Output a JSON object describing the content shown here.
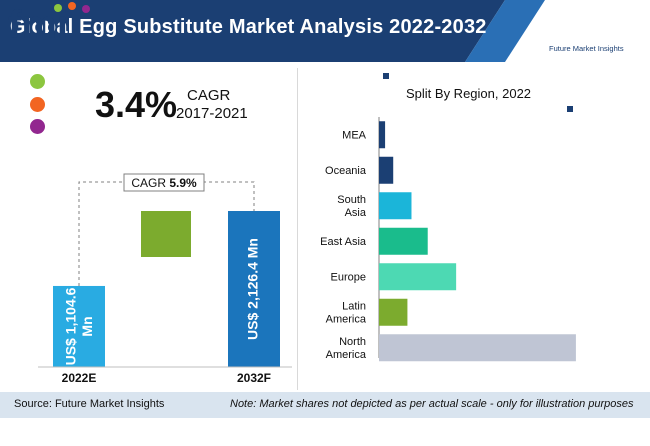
{
  "header": {
    "title": "Global Egg Substitute Market Analysis 2022-2032",
    "logo_letters": "fmi",
    "logo_subtitle": "Future Market Insights"
  },
  "colors": {
    "header_dark": "#1b3f73",
    "header_light": "#2a6fb5",
    "dot_green": "#8cc63f",
    "dot_orange": "#f26522",
    "dot_purple": "#92278f",
    "bar_2022": "#29abe2",
    "bar_2032": "#1b75bc",
    "bar_growth": "#7cab2e",
    "footer_bg": "#d9e4ef"
  },
  "cagr_historic": {
    "value": "3.4%",
    "label": "CAGR",
    "period": "2017-2021"
  },
  "chart_data": [
    {
      "type": "bar",
      "categories": [
        "2022E",
        "2032F"
      ],
      "series": [
        {
          "values": [
            1104.6,
            2126.4
          ]
        }
      ],
      "bar_labels": [
        "US$ 1,104.6 Mn",
        "US$ 2,126.4 Mn"
      ],
      "annotation": {
        "label": "CAGR",
        "value": "5.9%"
      }
    },
    {
      "type": "bar",
      "orientation": "horizontal",
      "title": "Split By Region, 2022",
      "categories": [
        "MEA",
        "Oceania",
        "South Asia",
        "East Asia",
        "Europe",
        "Latin America",
        "North America"
      ],
      "category_lines": [
        [
          "MEA"
        ],
        [
          "Oceania"
        ],
        [
          "South",
          "Asia"
        ],
        [
          "East Asia"
        ],
        [
          "Europe"
        ],
        [
          "Latin",
          "America"
        ],
        [
          "North",
          "America"
        ]
      ],
      "values": [
        3,
        7,
        16,
        24,
        38,
        14,
        97
      ],
      "colors": [
        "#1b3f73",
        "#1b3f73",
        "#1bb5d9",
        "#1abc8c",
        "#4dd9b3",
        "#7cab2e",
        "#bfc5d4"
      ],
      "xlim": [
        0,
        100
      ]
    }
  ],
  "footer": {
    "source": "Source: Future Market Insights",
    "note": "Note: Market shares not depicted as per actual scale - only for illustration purposes"
  }
}
